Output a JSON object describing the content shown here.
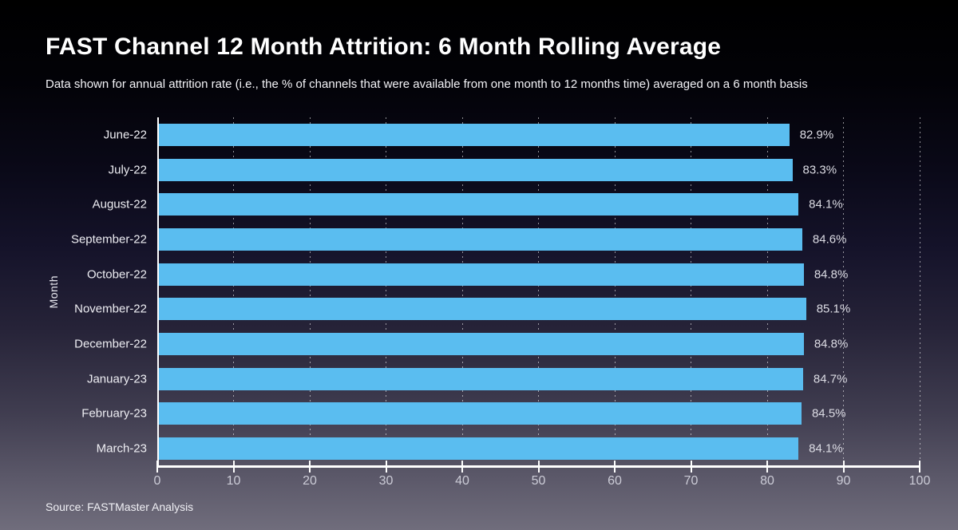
{
  "header": {
    "title": "FAST Channel 12 Month Attrition: 6 Month Rolling Average",
    "subtitle": "Data shown for annual attrition rate (i.e., the % of channels that were available from one month to 12 months time) averaged on a 6 month basis"
  },
  "chart_data": {
    "type": "bar",
    "orientation": "horizontal",
    "title": "FAST Channel 12 Month Attrition: 6 Month Rolling Average",
    "ylabel": "Month",
    "xlabel": "",
    "categories": [
      "June-22",
      "July-22",
      "August-22",
      "September-22",
      "October-22",
      "November-22",
      "December-22",
      "January-23",
      "February-23",
      "March-23"
    ],
    "values": [
      82.9,
      83.3,
      84.1,
      84.6,
      84.8,
      85.1,
      84.8,
      84.7,
      84.5,
      84.1
    ],
    "value_labels": [
      "82.9%",
      "83.3%",
      "84.1%",
      "84.6%",
      "84.8%",
      "85.1%",
      "84.8%",
      "84.7%",
      "84.5%",
      "84.1%"
    ],
    "xlim": [
      0,
      100
    ],
    "x_ticks": [
      0,
      10,
      20,
      30,
      40,
      50,
      60,
      70,
      80,
      90,
      100
    ],
    "grid": "dashed-vertical-on",
    "legend": "none",
    "bar_color": "#5abdf0",
    "axis_color": "#ffffff"
  },
  "footer": {
    "source": "Source: FASTMaster Analysis"
  }
}
